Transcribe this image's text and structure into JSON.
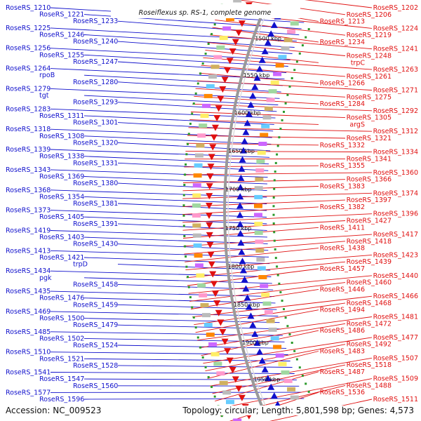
{
  "title": "Roseiflexus sp. RS-1, complete genome",
  "footer": {
    "accession": "Accession: NC_009523",
    "topology": "Topology: circular; Length: 5,801,598 bp; Genes: 4,573"
  },
  "colors": {
    "forward": "#1010cc",
    "reverse": "#e01010",
    "backbone": "#999999",
    "gc_marker": "#2a9a2a",
    "features": [
      "#a0d8a0",
      "#ff99cc",
      "#d0b060",
      "#bbbbbb",
      "#66ccff",
      "#ff8800",
      "#cc66ff",
      "#ffee66"
    ]
  },
  "ruler": [
    "1500 kbp",
    "1550 kbp",
    "1600 kbp",
    "1650 kbp",
    "1700 kbp",
    "1750 kbp",
    "1800 kbp",
    "1850 kbp",
    "1900 kbp",
    "1950 kbp"
  ],
  "forward_labels": [
    "RoseRS_1210",
    "RoseRS_1221",
    "RoseRS_1233",
    "RoseRS_1225",
    "RoseRS_1246",
    "RoseRS_1240",
    "RoseRS_1256",
    "RoseRS_1255",
    "RoseRS_1247",
    "RoseRS_1264",
    "rpoB",
    "RoseRS_1280",
    "RoseRS_1279",
    "tgt",
    "RoseRS_1293",
    "RoseRS_1283",
    "RoseRS_1311",
    "RoseRS_1301",
    "RoseRS_1318",
    "RoseRS_1308",
    "RoseRS_1320",
    "RoseRS_1339",
    "RoseRS_1338",
    "RoseRS_1331",
    "RoseRS_1343",
    "RoseRS_1369",
    "RoseRS_1380",
    "RoseRS_1368",
    "RoseRS_1354",
    "RoseRS_1381",
    "RoseRS_1373",
    "RoseRS_1405",
    "RoseRS_1391",
    "RoseRS_1419",
    "RoseRS_1403",
    "RoseRS_1430",
    "RoseRS_1413",
    "RoseRS_1421",
    "trpD",
    "RoseRS_1434",
    "pgk",
    "RoseRS_1458",
    "RoseRS_1435",
    "RoseRS_1476",
    "RoseRS_1459",
    "RoseRS_1469",
    "RoseRS_1500",
    "RoseRS_1479",
    "RoseRS_1485",
    "RoseRS_1502",
    "RoseRS_1524",
    "RoseRS_1510",
    "RoseRS_1521",
    "RoseRS_1528",
    "RoseRS_1541",
    "RoseRS_1547",
    "RoseRS_1560",
    "RoseRS_1577",
    "RoseRS_1596"
  ],
  "reverse_labels": [
    "RoseRS_1202",
    "RoseRS_1206",
    "RoseRS_1213",
    "RoseRS_1224",
    "RoseRS_1219",
    "RoseRS_1234",
    "RoseRS_1241",
    "RoseRS_1248",
    "trpC",
    "RoseRS_1263",
    "RoseRS_1261",
    "RoseRS_1266",
    "RoseRS_1271",
    "RoseRS_1275",
    "RoseRS_1284",
    "RoseRS_1292",
    "RoseRS_1305",
    "argS",
    "RoseRS_1312",
    "RoseRS_1321",
    "RoseRS_1332",
    "RoseRS_1334",
    "RoseRS_1341",
    "RoseRS_1355",
    "RoseRS_1360",
    "RoseRS_1366",
    "RoseRS_1383",
    "RoseRS_1374",
    "RoseRS_1397",
    "RoseRS_1382",
    "RoseRS_1396",
    "RoseRS_1427",
    "RoseRS_1411",
    "RoseRS_1417",
    "RoseRS_1418",
    "RoseRS_1438",
    "RoseRS_1423",
    "RoseRS_1439",
    "RoseRS_1457",
    "RoseRS_1440",
    "RoseRS_1460",
    "RoseRS_1446",
    "RoseRS_1466",
    "RoseRS_1468",
    "RoseRS_1494",
    "RoseRS_1481",
    "RoseRS_1472",
    "RoseRS_1486",
    "RoseRS_1477",
    "RoseRS_1492",
    "RoseRS_1483",
    "RoseRS_1507",
    "RoseRS_1518",
    "RoseRS_1487",
    "RoseRS_1509",
    "RoseRS_1488",
    "RoseRS_1536",
    "RoseRS_1511"
  ]
}
